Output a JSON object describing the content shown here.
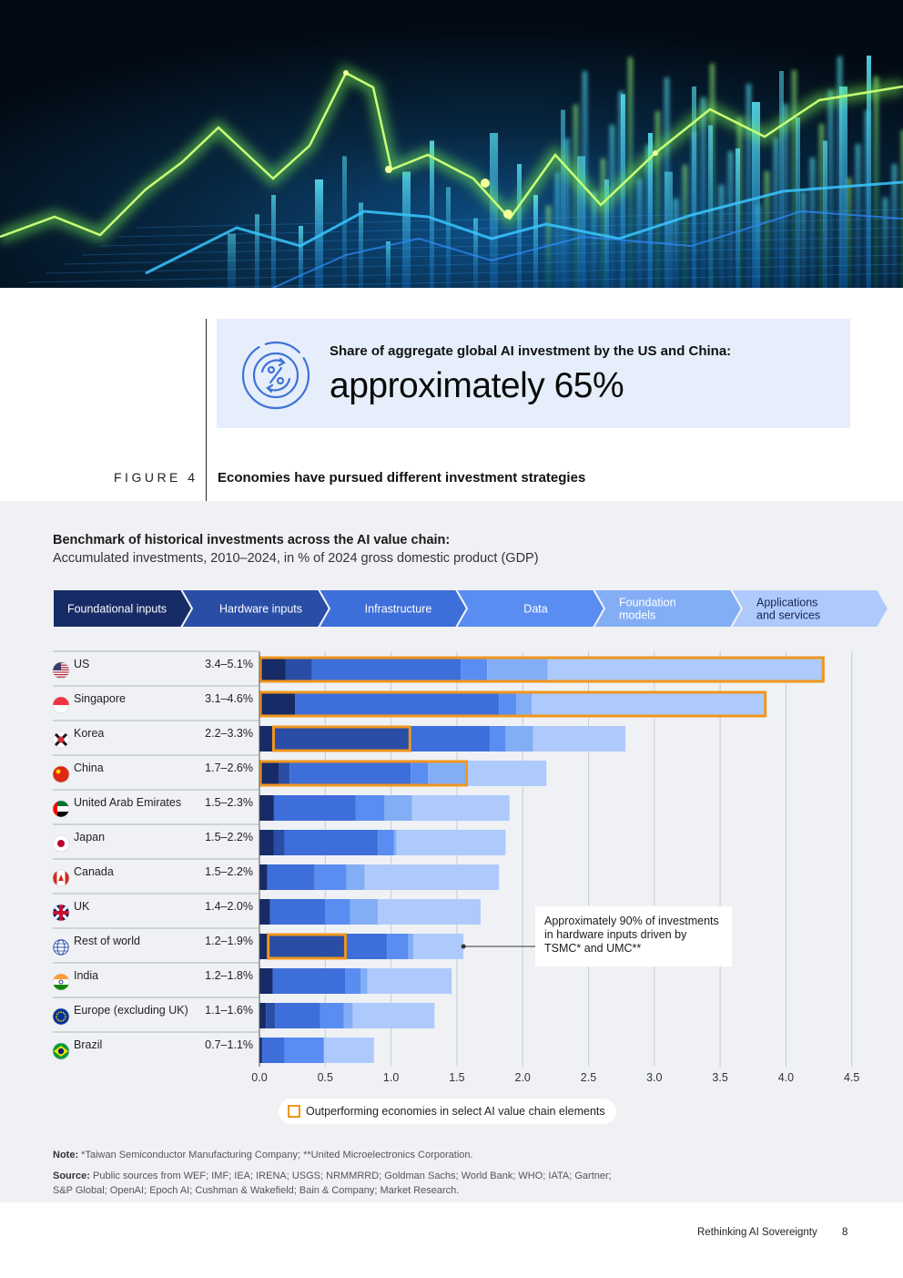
{
  "highlight": {
    "label": "Share of aggregate global AI investment by the US and China:",
    "value": "approximately 65%"
  },
  "figure": {
    "number": "FIGURE 4",
    "title": "Economies have pursued different investment strategies"
  },
  "chart_data": {
    "type": "bar",
    "orientation": "horizontal",
    "stacked": true,
    "title": "Benchmark of historical investments across the AI value chain:",
    "subtitle": "Accumulated investments, 2010–2024, in % of 2024 gross domestic product (GDP)",
    "xlim": [
      0,
      4.5
    ],
    "x_ticks": [
      "0.0",
      "0.5",
      "1.0",
      "1.5",
      "2.0",
      "2.5",
      "3.0",
      "3.5",
      "4.0",
      "4.5"
    ],
    "grid": true,
    "segments": [
      {
        "name": "Foundational inputs",
        "color": "#172b66",
        "text_color": "#ffffff"
      },
      {
        "name": "Hardware inputs",
        "color": "#2a4ea6",
        "text_color": "#ffffff"
      },
      {
        "name": "Infrastructure",
        "color": "#3e6ed9",
        "text_color": "#ffffff"
      },
      {
        "name": "Data",
        "color": "#5a8df2",
        "text_color": "#ffffff"
      },
      {
        "name": "Foundation models",
        "color": "#83aef6",
        "text_color": "#ffffff"
      },
      {
        "name": "Applications and services",
        "color": "#aecafc",
        "text_color": "#16254f"
      }
    ],
    "categories": [
      {
        "name": "US",
        "range": "3.4–5.1%",
        "flag": "us-flag-icon",
        "values": [
          0.2,
          0.2,
          1.13,
          0.2,
          0.46,
          2.1
        ],
        "highlight": [
          0,
          5
        ]
      },
      {
        "name": "Singapore",
        "range": "3.1–4.6%",
        "flag": "singapore-flag-icon",
        "values": [
          0.27,
          0,
          1.55,
          0.13,
          0.12,
          1.78
        ],
        "highlight": [
          0,
          5
        ]
      },
      {
        "name": "Korea",
        "range": "2.2–3.3%",
        "flag": "korea-flag-icon",
        "values": [
          0.1,
          1.05,
          0.6,
          0.12,
          0.21,
          0.7
        ],
        "highlight": [
          1,
          1
        ]
      },
      {
        "name": "China",
        "range": "1.7–2.6%",
        "flag": "china-flag-icon",
        "values": [
          0.15,
          0.08,
          0.92,
          0.13,
          0.3,
          0.6
        ],
        "highlight": [
          0,
          4
        ]
      },
      {
        "name": "United Arab Emirates",
        "range": "1.5–2.3%",
        "flag": "uae-flag-icon",
        "values": [
          0.11,
          0,
          0.62,
          0.22,
          0.21,
          0.74
        ],
        "highlight": null
      },
      {
        "name": "Japan",
        "range": "1.5–2.2%",
        "flag": "japan-flag-icon",
        "values": [
          0.11,
          0.08,
          0.71,
          0.12,
          0.02,
          0.83
        ],
        "highlight": null
      },
      {
        "name": "Canada",
        "range": "1.5–2.2%",
        "flag": "canada-flag-icon",
        "values": [
          0.06,
          0,
          0.36,
          0.24,
          0.14,
          1.02
        ],
        "highlight": null
      },
      {
        "name": "UK",
        "range": "1.4–2.0%",
        "flag": "uk-flag-icon",
        "values": [
          0.08,
          0,
          0.42,
          0.19,
          0.21,
          0.78
        ],
        "highlight": null
      },
      {
        "name": "Rest of world",
        "range": "1.2–1.9%",
        "flag": "globe-icon",
        "values": [
          0.06,
          0.6,
          0.31,
          0.16,
          0.04,
          0.38
        ],
        "highlight": [
          1,
          1
        ]
      },
      {
        "name": "India",
        "range": "1.2–1.8%",
        "flag": "india-flag-icon",
        "values": [
          0.1,
          0,
          0.55,
          0.12,
          0.05,
          0.64
        ],
        "highlight": null
      },
      {
        "name": "Europe (excluding UK)",
        "range": "1.1–1.6%",
        "flag": "eu-flag-icon",
        "values": [
          0.05,
          0.07,
          0.34,
          0.18,
          0.07,
          0.62
        ],
        "highlight": null
      },
      {
        "name": "Brazil",
        "range": "0.7–1.1%",
        "flag": "brazil-flag-icon",
        "values": [
          0.02,
          0,
          0.17,
          0.3,
          0,
          0.38
        ],
        "highlight": null
      }
    ],
    "annotation": {
      "text": "Approximately 90% of investments in hardware inputs driven by TSMC* and UMC**",
      "target": "Rest of world"
    },
    "legend": "Outperforming economies in select AI value chain elements",
    "highlight_color": "#f0961e"
  },
  "notes": {
    "note_label": "Note:",
    "note_text": " *Taiwan Semiconductor Manufacturing Company; **United Microelectronics Corporation.",
    "source_label": "Source:",
    "source_text": " Public sources from WEF; IMF; IEA; IRENA; USGS; NRMMRRD; Goldman Sachs; World Bank; WHO; IATA; Gartner; S&P Global; OpenAI; Epoch AI; Cushman & Wakefield; Bain & Company; Market Research."
  },
  "footer": {
    "report": "Rethinking AI Sovereignty",
    "page": "8"
  }
}
